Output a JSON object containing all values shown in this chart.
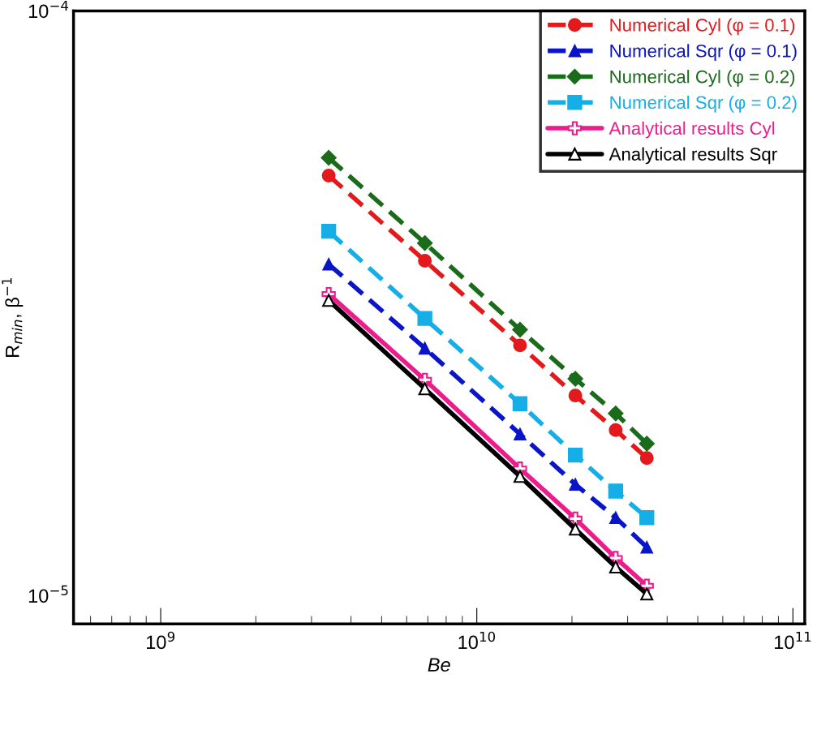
{
  "chart_data": {
    "type": "line",
    "xlabel": "Be",
    "ylabel": "R$_{min}$, β$^{−1}$",
    "log": "xy",
    "xlim": [
      530000000.0,
      109000000000.0
    ],
    "ylim": [
      8.95e-06,
      0.0001
    ],
    "xticks": [
      {
        "value": 1000000000.0,
        "label": "10$^{9}$"
      },
      {
        "value": 10000000000.0,
        "label": "10$^{10}$"
      },
      {
        "value": 100000000000.0,
        "label": "10$^{11}$"
      }
    ],
    "yticks": [
      {
        "value": 1e-05,
        "label": "10$^{−5}$"
      },
      {
        "value": 0.0001,
        "label": "10$^{−4}$"
      }
    ],
    "grid": false,
    "legend": "top right",
    "x": [
      3400000000.0,
      6850000000.0,
      13700000000.0,
      20500000000.0,
      27500000000.0,
      34500000000.0
    ],
    "series": [
      {
        "name": "Numerical Cyl (φ = 0.1)",
        "color": "#e31a1c",
        "marker": "circle",
        "line_style": "dashed",
        "values": [
          5.23e-05,
          3.74e-05,
          2.68e-05,
          2.2e-05,
          1.92e-05,
          1.72e-05
        ]
      },
      {
        "name": "Numerical Sqr (φ = 0.1)",
        "color": "#0a14c8",
        "marker": "triangle",
        "line_style": "dashed",
        "values": [
          3.69e-05,
          2.65e-05,
          1.89e-05,
          1.55e-05,
          1.36e-05,
          1.21e-05
        ]
      },
      {
        "name": "Numerical Cyl (φ = 0.2)",
        "color": "#1a6b1a",
        "marker": "diamond",
        "line_style": "dashed",
        "values": [
          5.61e-05,
          4.01e-05,
          2.85e-05,
          2.35e-05,
          2.05e-05,
          1.82e-05
        ]
      },
      {
        "name": "Numerical Sqr (φ = 0.2)",
        "color": "#15aee6",
        "marker": "square",
        "line_style": "dashed",
        "values": [
          4.2e-05,
          2.98e-05,
          2.13e-05,
          1.74e-05,
          1.51e-05,
          1.36e-05
        ]
      },
      {
        "name": "Analytical results Cyl",
        "color": "#ec1c8c",
        "marker": "cross",
        "line_style": "solid",
        "values": [
          3.28e-05,
          2.34e-05,
          1.65e-05,
          1.355e-05,
          1.16e-05,
          1.04e-05
        ]
      },
      {
        "name": "Analytical results Sqr",
        "color": "#000000",
        "marker": "triangle",
        "line_style": "solid",
        "values": [
          3.2e-05,
          2.26e-05,
          1.6e-05,
          1.3e-05,
          1.12e-05,
          1.007e-05
        ]
      }
    ]
  }
}
